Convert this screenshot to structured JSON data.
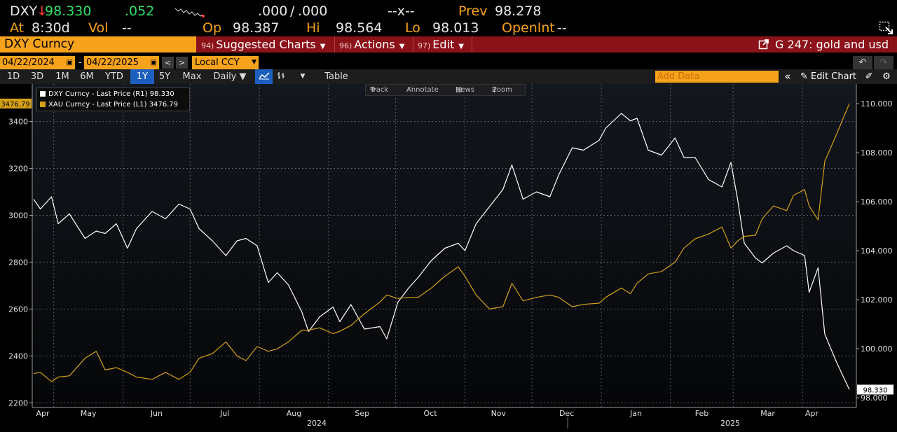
{
  "ticker": {
    "symbol": "DXY",
    "arrow": "↓",
    "last": "98.330",
    "change": ".052",
    "bid": ".000",
    "slash": "/",
    "ask": ".000",
    "bidask_size": "--x--",
    "prev_label": "Prev",
    "prev_value": "98.278",
    "at_label": "At",
    "at_value": "8:30d",
    "vol_label": "Vol",
    "vol_value": "--",
    "open_label": "Op",
    "open_value": "98.387",
    "high_label": "Hi",
    "high_value": "98.564",
    "low_label": "Lo",
    "low_value": "98.013",
    "oi_label": "OpenInt",
    "oi_value": "--"
  },
  "menubar": {
    "security": "DXY Curncy",
    "items": [
      {
        "num": "94)",
        "label": "Suggested Charts"
      },
      {
        "num": "96)",
        "label": "Actions"
      },
      {
        "num": "97)",
        "label": "Edit"
      }
    ],
    "chart_title": "G 247: gold and usd"
  },
  "dates": {
    "start": "04/22/2024",
    "sep": "-",
    "end": "04/22/2025",
    "prev_btn": "<",
    "next_btn": ">",
    "currency": "Local CCY"
  },
  "ranges": {
    "buttons": [
      "1D",
      "3D",
      "1M",
      "6M",
      "YTD",
      "1Y",
      "5Y",
      "Max"
    ],
    "active": "1Y",
    "frequency": "Daily ▼",
    "table": "Table",
    "add_data_placeholder": "Add Data",
    "collapse": "«",
    "edit_chart": "Edit Chart"
  },
  "toolbar": {
    "track": "Track",
    "annotate": "Annotate",
    "news": "News",
    "zoom": "Zoom"
  },
  "colors": {
    "dxy": "#ffffff",
    "xau": "#d4a017",
    "accent": "#f7a21b",
    "menubar": "#8c1219"
  },
  "chart_data": {
    "type": "line",
    "legend": [
      {
        "name": "DXY Curncy - Last Price (R1) 98.330",
        "color": "#ffffff"
      },
      {
        "name": "XAU Curncy - Last Price (L1) 3476.79",
        "color": "#d4a017"
      }
    ],
    "x_labels": [
      "Apr",
      "May",
      "Jun",
      "Jul",
      "Aug",
      "Sep",
      "Oct",
      "Nov",
      "Dec",
      "Jan",
      "Feb",
      "Mar",
      "Apr"
    ],
    "year_labels": [
      "2024",
      "2025"
    ],
    "y_left": {
      "min": 2180,
      "max": 3560,
      "ticks": [
        2200,
        2400,
        2600,
        2800,
        3000,
        3200,
        3400
      ]
    },
    "y_right": {
      "min": 97.6,
      "max": 110.8,
      "ticks": [
        "98.000",
        "100.000",
        "102.000",
        "104.000",
        "106.000",
        "108.000",
        "110.000"
      ]
    },
    "left_last_label": "3476.79",
    "right_last_label": "98.330",
    "grid": true,
    "series": [
      {
        "name": "DXY Curncy",
        "axis": "right",
        "color": "#ffffff",
        "x": [
          "2024-04-22",
          "2024-04-25",
          "2024-04-30",
          "2024-05-03",
          "2024-05-08",
          "2024-05-15",
          "2024-05-20",
          "2024-05-24",
          "2024-05-29",
          "2024-06-03",
          "2024-06-07",
          "2024-06-14",
          "2024-06-20",
          "2024-06-26",
          "2024-07-01",
          "2024-07-05",
          "2024-07-11",
          "2024-07-17",
          "2024-07-22",
          "2024-07-26",
          "2024-07-31",
          "2024-08-05",
          "2024-08-09",
          "2024-08-14",
          "2024-08-20",
          "2024-08-23",
          "2024-08-28",
          "2024-09-03",
          "2024-09-06",
          "2024-09-11",
          "2024-09-17",
          "2024-09-24",
          "2024-09-27",
          "2024-10-02",
          "2024-10-07",
          "2024-10-11",
          "2024-10-17",
          "2024-10-23",
          "2024-10-29",
          "2024-11-01",
          "2024-11-06",
          "2024-11-12",
          "2024-11-18",
          "2024-11-22",
          "2024-11-27",
          "2024-12-03",
          "2024-12-09",
          "2024-12-13",
          "2024-12-19",
          "2024-12-24",
          "2024-12-31",
          "2025-01-03",
          "2025-01-10",
          "2025-01-14",
          "2025-01-17",
          "2025-01-22",
          "2025-01-28",
          "2025-02-03",
          "2025-02-07",
          "2025-02-12",
          "2025-02-18",
          "2025-02-24",
          "2025-02-28",
          "2025-03-03",
          "2025-03-06",
          "2025-03-11",
          "2025-03-14",
          "2025-03-19",
          "2025-03-25",
          "2025-03-28",
          "2025-04-02",
          "2025-04-04",
          "2025-04-08",
          "2025-04-11",
          "2025-04-16",
          "2025-04-22"
        ],
        "values": [
          106.1,
          105.7,
          106.2,
          105.1,
          105.5,
          104.5,
          104.8,
          104.7,
          105.1,
          104.1,
          104.9,
          105.6,
          105.3,
          105.9,
          105.7,
          104.9,
          104.4,
          103.8,
          104.4,
          104.5,
          104.2,
          102.7,
          103.1,
          102.6,
          101.5,
          100.7,
          101.3,
          101.7,
          101.1,
          101.8,
          100.8,
          100.9,
          100.4,
          101.9,
          102.5,
          102.9,
          103.6,
          104.1,
          104.3,
          104.0,
          105.1,
          105.8,
          106.5,
          107.5,
          106.1,
          106.4,
          106.2,
          107.1,
          108.2,
          108.1,
          108.5,
          109.0,
          109.6,
          109.3,
          109.4,
          108.1,
          107.9,
          108.6,
          107.8,
          107.8,
          106.9,
          106.6,
          107.6,
          106.1,
          104.3,
          103.7,
          103.5,
          103.9,
          104.2,
          104.0,
          103.8,
          102.3,
          103.3,
          100.6,
          99.5,
          98.33
        ]
      },
      {
        "name": "XAU Curncy",
        "axis": "left",
        "color": "#d4a017",
        "x": [
          "2024-04-22",
          "2024-04-25",
          "2024-04-30",
          "2024-05-03",
          "2024-05-08",
          "2024-05-15",
          "2024-05-20",
          "2024-05-24",
          "2024-05-29",
          "2024-06-03",
          "2024-06-07",
          "2024-06-14",
          "2024-06-20",
          "2024-06-26",
          "2024-07-01",
          "2024-07-05",
          "2024-07-11",
          "2024-07-17",
          "2024-07-22",
          "2024-07-26",
          "2024-07-31",
          "2024-08-05",
          "2024-08-09",
          "2024-08-14",
          "2024-08-20",
          "2024-08-23",
          "2024-08-28",
          "2024-09-03",
          "2024-09-06",
          "2024-09-11",
          "2024-09-17",
          "2024-09-24",
          "2024-09-27",
          "2024-10-02",
          "2024-10-07",
          "2024-10-11",
          "2024-10-17",
          "2024-10-23",
          "2024-10-29",
          "2024-11-01",
          "2024-11-06",
          "2024-11-12",
          "2024-11-18",
          "2024-11-22",
          "2024-11-27",
          "2024-12-03",
          "2024-12-09",
          "2024-12-13",
          "2024-12-19",
          "2024-12-24",
          "2024-12-31",
          "2025-01-03",
          "2025-01-10",
          "2025-01-14",
          "2025-01-17",
          "2025-01-22",
          "2025-01-28",
          "2025-02-03",
          "2025-02-07",
          "2025-02-12",
          "2025-02-18",
          "2025-02-24",
          "2025-02-28",
          "2025-03-03",
          "2025-03-06",
          "2025-03-11",
          "2025-03-14",
          "2025-03-19",
          "2025-03-25",
          "2025-03-28",
          "2025-04-02",
          "2025-04-04",
          "2025-04-08",
          "2025-04-11",
          "2025-04-16",
          "2025-04-22"
        ],
        "values": [
          2325,
          2330,
          2290,
          2310,
          2315,
          2390,
          2420,
          2340,
          2350,
          2330,
          2310,
          2300,
          2330,
          2300,
          2330,
          2390,
          2410,
          2460,
          2400,
          2380,
          2440,
          2420,
          2430,
          2460,
          2510,
          2510,
          2520,
          2495,
          2505,
          2530,
          2580,
          2630,
          2660,
          2645,
          2650,
          2650,
          2690,
          2740,
          2780,
          2740,
          2660,
          2600,
          2610,
          2710,
          2635,
          2650,
          2660,
          2650,
          2610,
          2620,
          2625,
          2650,
          2690,
          2665,
          2710,
          2750,
          2760,
          2800,
          2860,
          2900,
          2920,
          2950,
          2860,
          2890,
          2910,
          2915,
          2985,
          3040,
          3020,
          3085,
          3110,
          3040,
          2980,
          3230,
          3340,
          3476.79
        ]
      }
    ]
  }
}
